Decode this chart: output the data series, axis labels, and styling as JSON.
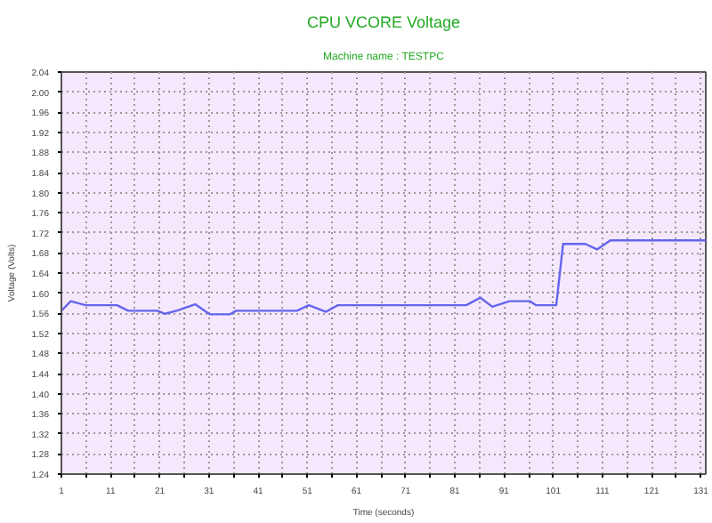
{
  "chart_data": {
    "type": "line",
    "title": "CPU VCORE Voltage",
    "subtitle": "Machine name : TESTPC",
    "xlabel": "Time (seconds)",
    "ylabel": "Voltage (Volts)",
    "x": [
      1,
      2.9,
      5.9,
      12.3,
      14.6,
      20.5,
      22.1,
      24.7,
      28.2,
      30.4,
      31.2,
      35.3,
      36.5,
      48.9,
      51.3,
      54.8,
      57.2,
      83.3,
      86.2,
      88.6,
      92.1,
      96.3,
      97.5,
      101.6,
      103,
      107.5,
      109.9,
      112.6,
      132
    ],
    "series": [
      {
        "color": "#6464ee",
        "values": [
          1.565,
          1.584,
          1.576,
          1.576,
          1.565,
          1.565,
          1.559,
          1.566,
          1.578,
          1.563,
          1.558,
          1.558,
          1.565,
          1.565,
          1.576,
          1.563,
          1.576,
          1.576,
          1.591,
          1.573,
          1.584,
          1.584,
          1.576,
          1.576,
          1.698,
          1.698,
          1.687,
          1.705,
          1.705
        ]
      }
    ],
    "xlim": [
      1,
      132
    ],
    "ylim": [
      1.24,
      2.04
    ],
    "xticks": [
      1,
      {
        "value": 6,
        "label": null
      },
      11,
      {
        "value": 16,
        "label": null
      },
      21,
      {
        "value": 26,
        "label": null
      },
      31,
      {
        "value": 36,
        "label": null
      },
      41,
      {
        "value": 46,
        "label": null
      },
      51,
      {
        "value": 56,
        "label": null
      },
      61,
      {
        "value": 66,
        "label": null
      },
      71,
      {
        "value": 76,
        "label": null
      },
      81,
      {
        "value": 86,
        "label": null
      },
      91,
      {
        "value": 96,
        "label": null
      },
      101,
      {
        "value": 106,
        "label": null
      },
      111,
      {
        "value": 116,
        "label": null
      },
      121,
      {
        "value": 126,
        "label": null
      },
      131
    ],
    "yticks": [
      {
        "value": 1.24,
        "label": "1.24"
      },
      {
        "value": 1.28,
        "label": "1.28"
      },
      {
        "value": 1.32,
        "label": "1.32"
      },
      {
        "value": 1.36,
        "label": "1.36"
      },
      {
        "value": 1.4,
        "label": "1.40"
      },
      {
        "value": 1.44,
        "label": "1.44"
      },
      {
        "value": 1.48,
        "label": "1.48"
      },
      {
        "value": 1.52,
        "label": "1.52"
      },
      {
        "value": 1.56,
        "label": "1.56"
      },
      {
        "value": 1.6,
        "label": "1.60"
      },
      {
        "value": 1.64,
        "label": "1.64"
      },
      {
        "value": 1.68,
        "label": "1.68"
      },
      {
        "value": 1.72,
        "label": "1.72"
      },
      {
        "value": 1.76,
        "label": "1.76"
      },
      {
        "value": 1.8,
        "label": "1.80"
      },
      {
        "value": 1.84,
        "label": "1.84"
      },
      {
        "value": 1.88,
        "label": "1.88"
      },
      {
        "value": 1.92,
        "label": "1.92"
      },
      {
        "value": 1.96,
        "label": "1.96"
      },
      {
        "value": 2.0,
        "label": "2.00"
      },
      {
        "value": 2.04,
        "label": "2.04"
      }
    ],
    "grid": true,
    "line_style": "solid"
  }
}
